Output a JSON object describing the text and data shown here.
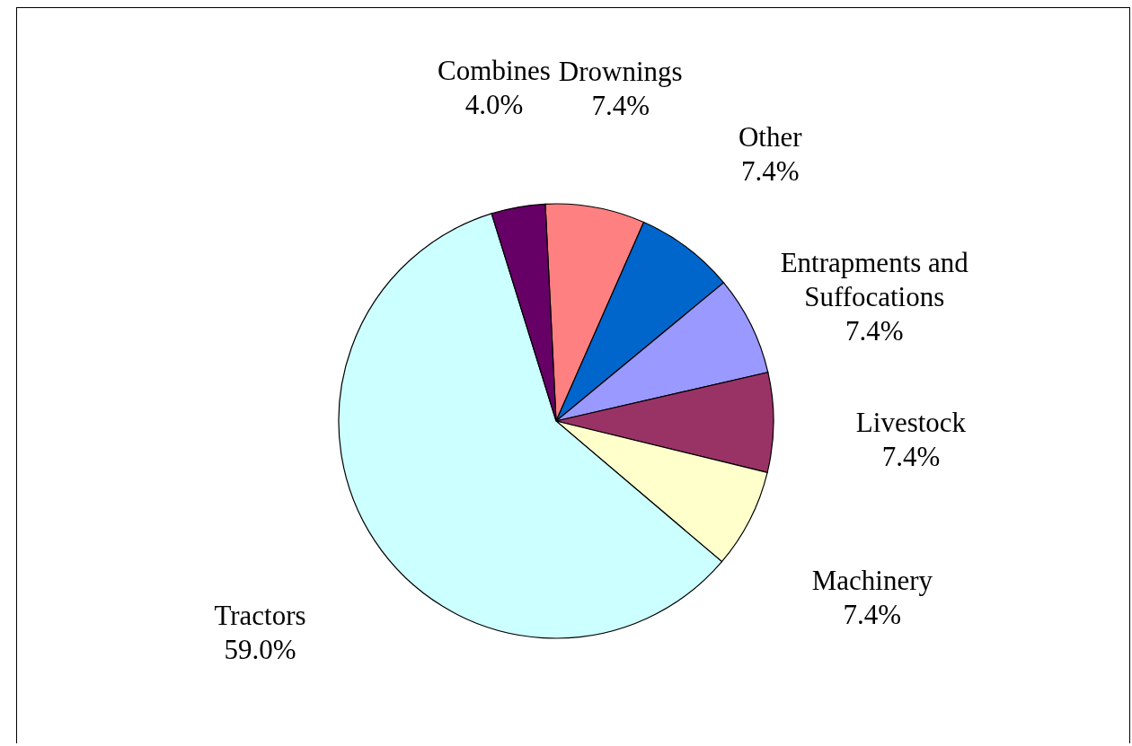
{
  "chart_data": {
    "type": "pie",
    "categories": [
      "Drownings",
      "Other",
      "Entrapments and Suffocations",
      "Livestock",
      "Machinery",
      "Tractors",
      "Combines"
    ],
    "values": [
      7.4,
      7.4,
      7.4,
      7.4,
      7.4,
      59.0,
      4.0
    ],
    "value_labels": [
      "7.4%",
      "7.4%",
      "7.4%",
      "7.4%",
      "7.4%",
      "59.0%",
      "4.0%"
    ],
    "colors": [
      "#ff8080",
      "#0066cc",
      "#9999ff",
      "#993366",
      "#ffffcc",
      "#ccffff",
      "#660066"
    ]
  }
}
